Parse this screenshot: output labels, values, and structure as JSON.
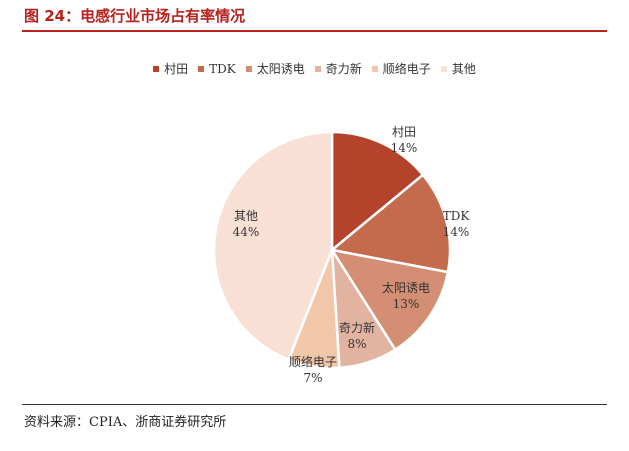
{
  "figure": {
    "title": "图 24：电感行业市场占有率情况",
    "source": "资料来源：CPIA、浙商证券研究所"
  },
  "colors": {
    "accent": "#b7221e"
  },
  "chart_data": {
    "type": "pie",
    "legend_position": "top",
    "slices": [
      {
        "name": "村田",
        "value": 14,
        "label": "14%",
        "color": "#b5432b"
      },
      {
        "name": "TDK",
        "value": 14,
        "label": "14%",
        "color": "#c46a4d"
      },
      {
        "name": "太阳诱电",
        "value": 13,
        "label": "13%",
        "color": "#d38e73"
      },
      {
        "name": "奇力新",
        "value": 8,
        "label": "8%",
        "color": "#e2b3a0"
      },
      {
        "name": "顺络电子",
        "value": 7,
        "label": "7%",
        "color": "#f2c6a8"
      },
      {
        "name": "其他",
        "value": 44,
        "label": "44%",
        "color": "#f8e1d4"
      }
    ]
  }
}
